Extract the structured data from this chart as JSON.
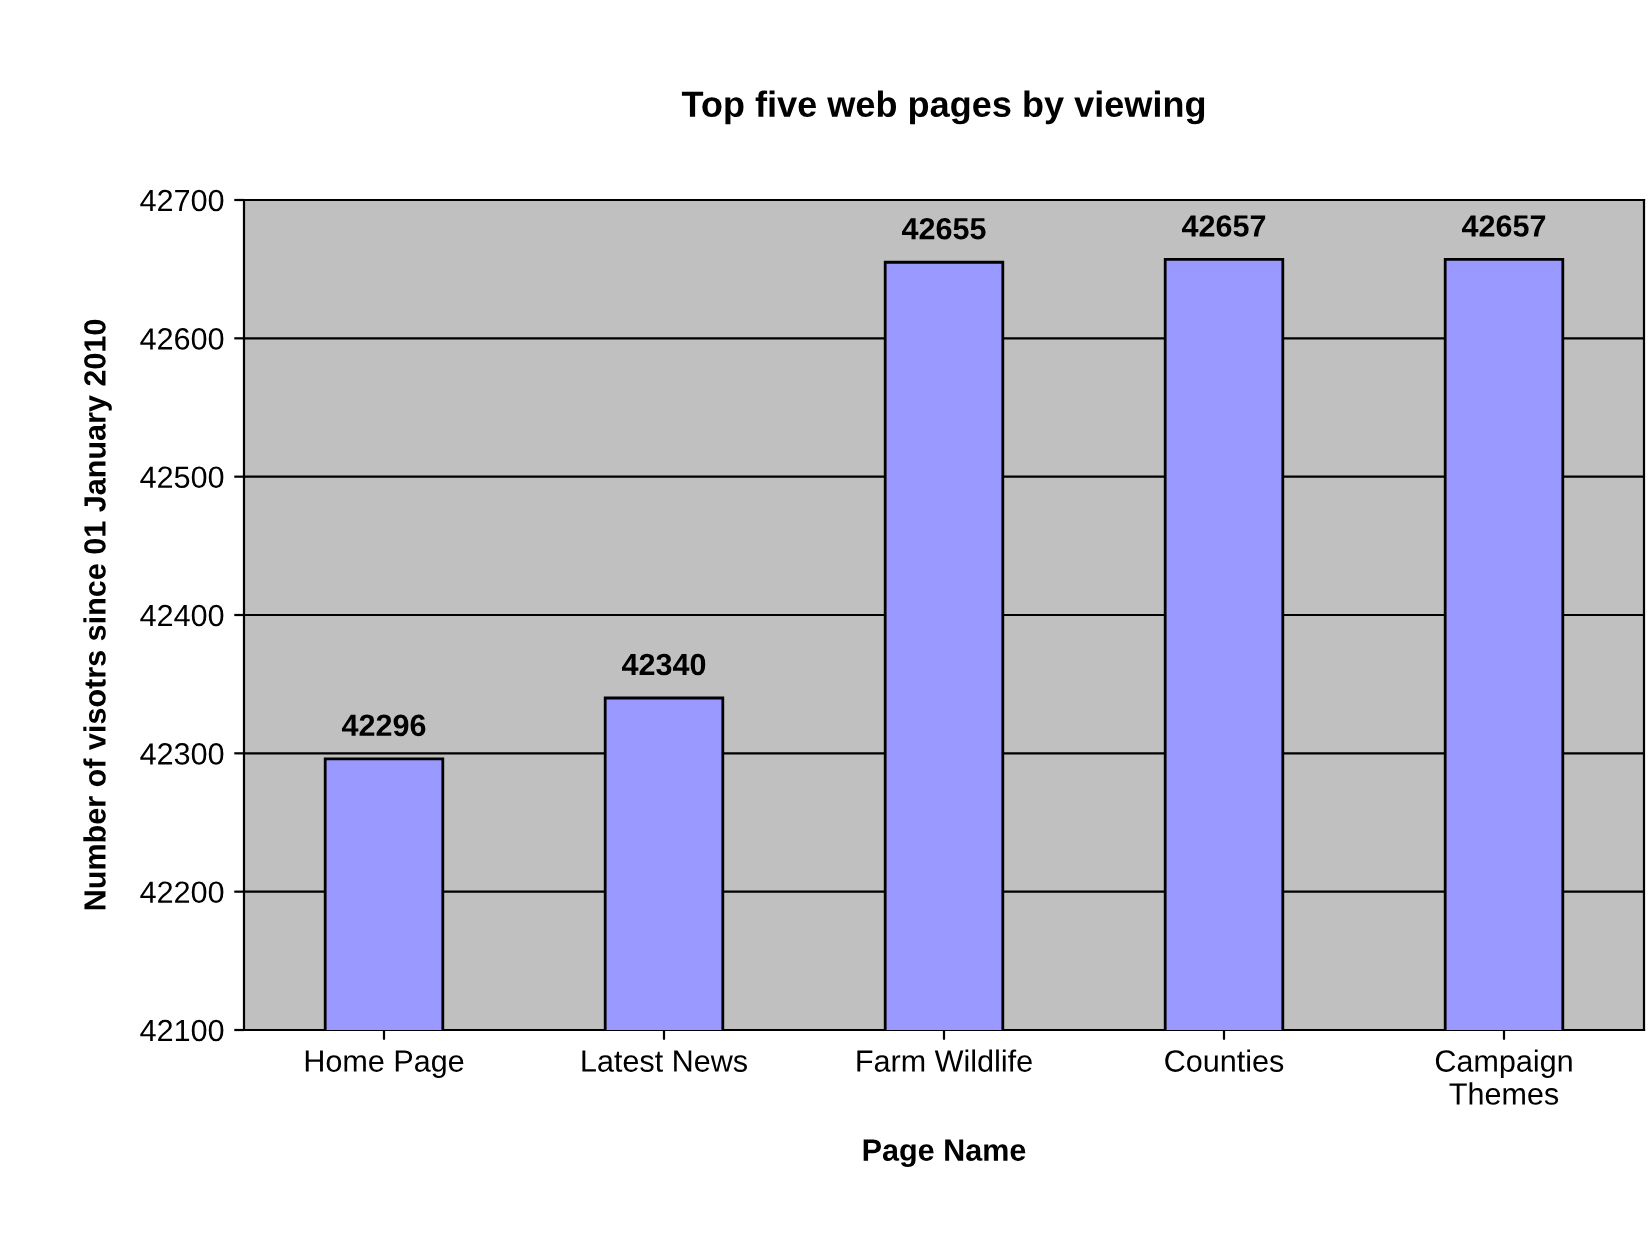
{
  "chart_data": {
    "type": "bar",
    "title": "Top five web pages by viewing",
    "xlabel": "Page Name",
    "ylabel": "Number of visotrs since 01 January 2010",
    "categories": [
      "Home Page",
      "Latest News",
      "Farm Wildlife",
      "Counties",
      "Campaign\nThemes"
    ],
    "values": [
      42296,
      42340,
      42655,
      42657,
      42657
    ],
    "color": "#9999ff",
    "ylim": [
      42100,
      42700
    ],
    "yticks": [
      42100,
      42200,
      42300,
      42400,
      42500,
      42600,
      42700
    ],
    "grid": "y",
    "data_labels": true
  }
}
